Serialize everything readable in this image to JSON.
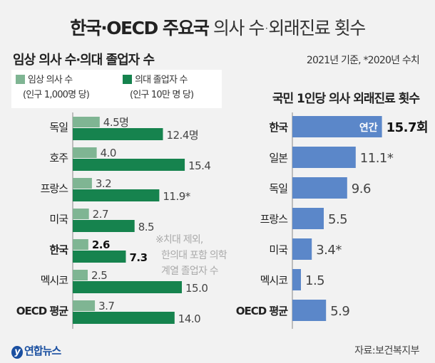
{
  "title": {
    "bold": "한국·OECD 주요국",
    "light": "의사 수·외래진료 횟수"
  },
  "basis_note": "2021년 기준, *2020년 수치",
  "footnote": [
    "※치대 제외,",
    "한의대 포함 의학",
    "계열 졸업자 수"
  ],
  "source": "자료:보건복지부",
  "logo": "연합뉴스",
  "colors": {
    "clinical": "#7fb593",
    "graduates": "#16834e",
    "visits": "#5b87c9",
    "background": "#f2f2f2"
  },
  "chart_data": [
    {
      "type": "bar",
      "orientation": "horizontal",
      "title": "임상 의사 수·의대 졸업자 수",
      "legend_placement": "top-left",
      "categories": [
        "독일",
        "호주",
        "프랑스",
        "미국",
        "한국",
        "멕시코",
        "OECD 평균"
      ],
      "highlight": [
        "한국",
        "OECD 평균"
      ],
      "series": [
        {
          "name": "임상 의사 수",
          "unit_note": "(인구 1,000명 당)",
          "values": [
            4.5,
            4.0,
            3.2,
            2.7,
            2.6,
            2.5,
            3.7
          ],
          "labels": [
            "4.5명",
            "4.0",
            "3.2",
            "2.7",
            "2.6",
            "2.5",
            "3.7"
          ]
        },
        {
          "name": "의대 졸업자 수",
          "unit_note": "(인구 10만 명 당)",
          "values": [
            12.4,
            15.4,
            11.9,
            8.5,
            7.3,
            15.0,
            14.0
          ],
          "labels": [
            "12.4명",
            "15.4",
            "11.9*",
            "8.5",
            "7.3",
            "15.0",
            "14.0"
          ]
        }
      ]
    },
    {
      "type": "bar",
      "orientation": "horizontal",
      "title": "국민 1인당 의사 외래진료 횟수",
      "categories": [
        "한국",
        "일본",
        "독일",
        "프랑스",
        "미국",
        "멕시코",
        "OECD 평균"
      ],
      "highlight": [
        "한국",
        "OECD 평균"
      ],
      "series": [
        {
          "values": [
            15.7,
            11.1,
            9.6,
            5.5,
            3.4,
            1.5,
            5.9
          ],
          "labels": [
            "15.7회",
            "11.1*",
            "9.6",
            "5.5",
            "3.4*",
            "1.5",
            "5.9"
          ]
        }
      ],
      "inbar_label": "연간"
    }
  ]
}
